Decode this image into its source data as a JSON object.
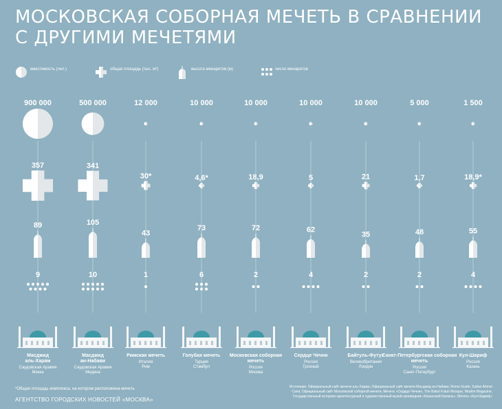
{
  "title": "МОСКОВСКАЯ СОБОРНАЯ МЕЧЕТЬ В СРАВНЕНИИ С ДРУГИМИ МЕЧЕТЯМИ",
  "legend": {
    "capacity": "вместимость (чел.)",
    "area": "общая площадь (тыс. м²)",
    "height": "высота минаретов (м)",
    "count": "число минаретов"
  },
  "chart_data": {
    "type": "table",
    "categories": [
      "Масджид аль-Харам",
      "Масджид ан-Набави",
      "Римская мечеть",
      "Голубая мечеть",
      "Московская соборная мечеть",
      "Сердце Чечни",
      "Байтуль-Футух",
      "Санкт-Петербургская соборная мечеть",
      "Кул-Шариф"
    ],
    "mosques": [
      {
        "name": "Масджид аль-Харам",
        "country": "Саудовская Аравия",
        "city": "Мекка",
        "capacity": 900000,
        "capacity_label": "900 000",
        "area": 357,
        "area_label": "357",
        "height": 89,
        "height_label": "89",
        "minarets": 9,
        "minarets_label": "9"
      },
      {
        "name": "Масджид ан-Набави",
        "country": "Саудовская Аравия",
        "city": "Медина",
        "capacity": 500000,
        "capacity_label": "500 000",
        "area": 341,
        "area_label": "341",
        "height": 105,
        "height_label": "105",
        "minarets": 10,
        "minarets_label": "10"
      },
      {
        "name": "Римская мечеть",
        "country": "Италия",
        "city": "Рим",
        "capacity": 12000,
        "capacity_label": "12 000",
        "area": 30,
        "area_label": "30*",
        "height": 43,
        "height_label": "43",
        "minarets": 1,
        "minarets_label": "1"
      },
      {
        "name": "Голубая мечеть",
        "country": "Турция",
        "city": "Стамбул",
        "capacity": 10000,
        "capacity_label": "10 000",
        "area": 4.6,
        "area_label": "4,6*",
        "height": 73,
        "height_label": "73",
        "minarets": 6,
        "minarets_label": "6"
      },
      {
        "name": "Московская соборная мечеть",
        "country": "Россия",
        "city": "Москва",
        "capacity": 10000,
        "capacity_label": "10 000",
        "area": 18.9,
        "area_label": "18,9",
        "height": 72,
        "height_label": "72",
        "minarets": 2,
        "minarets_label": "2"
      },
      {
        "name": "Сердце Чечни",
        "country": "Россия",
        "city": "Грозный",
        "capacity": 10000,
        "capacity_label": "10 000",
        "area": 5,
        "area_label": "5",
        "height": 62,
        "height_label": "62",
        "minarets": 4,
        "minarets_label": "4"
      },
      {
        "name": "Байтуль-Футух",
        "country": "Великобритания",
        "city": "Лондон",
        "capacity": 10000,
        "capacity_label": "10 000",
        "area": 21,
        "area_label": "21",
        "height": 35,
        "height_label": "35",
        "minarets": 2,
        "minarets_label": "2"
      },
      {
        "name": "Санкт-Петербургская соборная мечеть",
        "country": "Россия",
        "city": "Санкт-Петербург",
        "capacity": 5000,
        "capacity_label": "5 000",
        "area": 1.7,
        "area_label": "1,7",
        "height": 48,
        "height_label": "48",
        "minarets": 2,
        "minarets_label": "2"
      },
      {
        "name": "Кул-Шариф",
        "country": "Россия",
        "city": "Казань",
        "capacity": 1500,
        "capacity_label": "1 500",
        "area": 18.9,
        "area_label": "18,9*",
        "height": 55,
        "height_label": "55",
        "minarets": 4,
        "minarets_label": "4"
      }
    ]
  },
  "footnote": "*Общая площадь комплекса, на котором расположена мечеть",
  "agency": "АГЕНТСТВО ГОРОДСКИХ НОВОСТЕЙ «МОСКВА»",
  "sources": "Источники: Официальный сайт мечети аль-Харам, Официальный сайт мечети Масджид ан-Набави, Rome Guide, Sultan Ahmet Cami, Официальный сайт Московской соборной мечети, Мечеть «Сердце Чечни», The Baitul Futuh Mosque, Muslim Magazine, Государственный историко-архитектурный и художественный музей-заповедник «Казанский Кремль», Мечеть «Кул-Шариф»",
  "colors": {
    "background": "#8fb1c1",
    "shape_light": "#ffffff",
    "shape_shade": "#e3e7ea",
    "building": "#f4f6f7",
    "dome": "#3e9aa6"
  }
}
